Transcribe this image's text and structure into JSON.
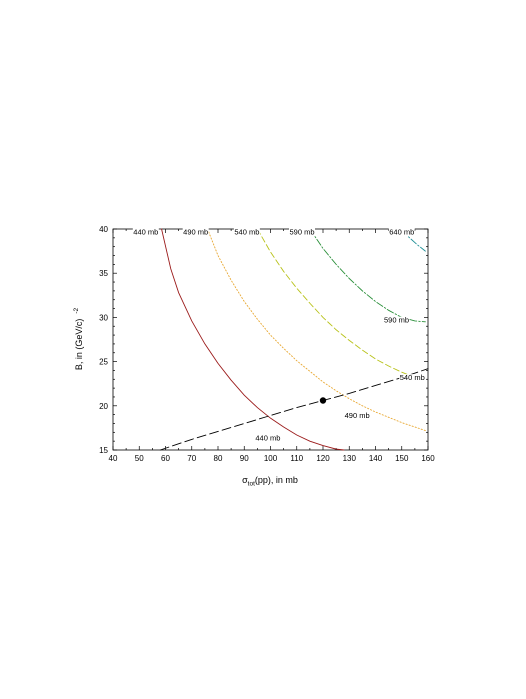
{
  "chart_data": {
    "type": "line",
    "xlabel": {
      "main": "σ",
      "sub": "tot",
      "rest": "(pp), in mb"
    },
    "ylabel": {
      "main": "B, in (GeV/c)",
      "sup": "-2"
    },
    "xlim": [
      40,
      160
    ],
    "ylim": [
      15,
      40
    ],
    "xticks": [
      40,
      50,
      60,
      70,
      80,
      90,
      100,
      110,
      120,
      130,
      140,
      150,
      160
    ],
    "yticks": [
      15,
      20,
      25,
      30,
      35,
      40
    ],
    "grid": false,
    "series": [
      {
        "label": "440 mb",
        "color": "#9b1b1b",
        "dash": "",
        "x": [
          58.5,
          62,
          65,
          70,
          75,
          80,
          85,
          90,
          95,
          100,
          105,
          110,
          115,
          120,
          125,
          128
        ],
        "y": [
          40,
          35.5,
          32.8,
          29.6,
          27.0,
          24.8,
          22.9,
          21.2,
          19.8,
          18.6,
          17.6,
          16.7,
          16.0,
          15.5,
          15.1,
          15
        ]
      },
      {
        "label": "490 mb",
        "color": "#e8a832",
        "dash": "1.2,2",
        "x": [
          76,
          80,
          85,
          90,
          95,
          100,
          105,
          110,
          115,
          120,
          125,
          130,
          135,
          140,
          145,
          150,
          155,
          159
        ],
        "y": [
          40,
          37.0,
          34.2,
          31.8,
          29.8,
          28.0,
          26.5,
          25.1,
          23.9,
          22.7,
          21.7,
          20.8,
          20.0,
          19.3,
          18.7,
          18.1,
          17.6,
          17.2
        ]
      },
      {
        "label": "540 mb",
        "color": "#b8c21a",
        "dash": "6,3",
        "x": [
          95,
          100,
          105,
          110,
          115,
          120,
          125,
          130,
          135,
          140,
          145,
          150,
          155,
          159
        ],
        "y": [
          40,
          37.4,
          35.2,
          33.3,
          31.6,
          30.0,
          28.6,
          27.4,
          26.3,
          25.3,
          24.5,
          23.8,
          23.2,
          22.7
        ]
      },
      {
        "label": "590 mb",
        "color": "#2a8f3a",
        "dash": "7,2,1.5,2",
        "x": [
          115,
          120,
          125,
          130,
          135,
          140,
          145,
          150,
          155,
          159
        ],
        "y": [
          40,
          37.8,
          36.0,
          34.4,
          33.0,
          31.8,
          30.8,
          30.0,
          29.6,
          29.5
        ]
      },
      {
        "label": "640 mb",
        "color": "#1f8f96",
        "dash": "7,2,1.5,2",
        "x": [
          150,
          153,
          156,
          159
        ],
        "y": [
          39.8,
          39.0,
          38.2,
          37.5
        ]
      },
      {
        "label": "",
        "color": "#000000",
        "dash": "9,4",
        "x": [
          58,
          70,
          80,
          90,
          100,
          110,
          120,
          130,
          140,
          150,
          160
        ],
        "y": [
          15.0,
          16.2,
          17.1,
          18.0,
          18.9,
          19.8,
          20.6,
          21.4,
          22.3,
          23.2,
          24.2
        ]
      }
    ],
    "marker": {
      "x": 120,
      "y": 20.6
    },
    "contour_labels": [
      {
        "text": "440 mb",
        "x": 52.5,
        "y": 39.4
      },
      {
        "text": "490 mb",
        "x": 71.5,
        "y": 39.4
      },
      {
        "text": "540 mb",
        "x": 91,
        "y": 39.4
      },
      {
        "text": "590 mb",
        "x": 112,
        "y": 39.4
      },
      {
        "text": "640 mb",
        "x": 150,
        "y": 39.4
      },
      {
        "text": "590 mb",
        "x": 148,
        "y": 29.4
      },
      {
        "text": "540 mb",
        "x": 154,
        "y": 22.9
      },
      {
        "text": "490 mb",
        "x": 133,
        "y": 18.6
      },
      {
        "text": "440 mb",
        "x": 99,
        "y": 16.1
      }
    ]
  }
}
